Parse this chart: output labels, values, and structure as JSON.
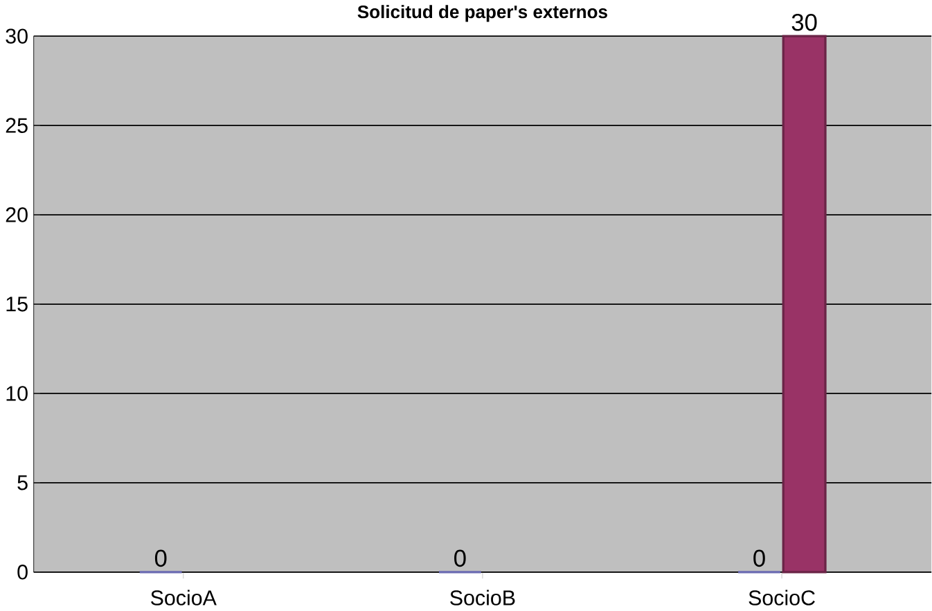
{
  "chart_data": {
    "type": "bar",
    "title": "Solicitud de paper's externos",
    "categories": [
      "SocioA",
      "SocioB",
      "SocioC"
    ],
    "series": [
      {
        "color": "#9999ff",
        "values": [
          0,
          0,
          0
        ],
        "value_labels": [
          "0",
          "0",
          "0"
        ]
      },
      {
        "color": "#993366",
        "values": [
          null,
          null,
          30
        ],
        "value_labels": [
          null,
          null,
          "30"
        ]
      }
    ],
    "ylim": [
      0,
      30
    ],
    "yticks": [
      0,
      5,
      10,
      15,
      20,
      25,
      30
    ],
    "grid": "y"
  }
}
